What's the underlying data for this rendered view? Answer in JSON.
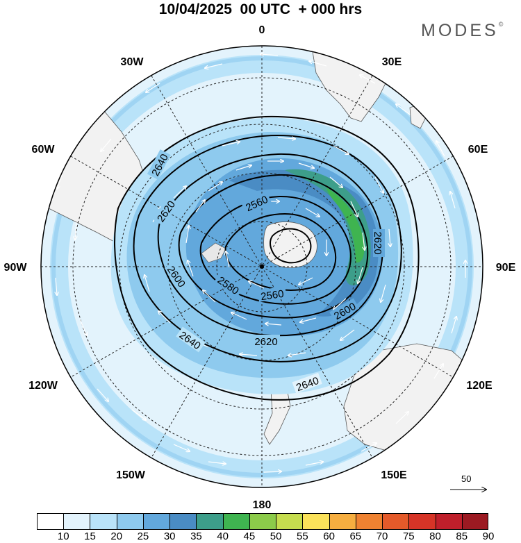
{
  "header": {
    "title": "10/04/2025  00 UTC  + 000 hrs",
    "brand": "MODES"
  },
  "map": {
    "projection": "polar-stereographic-south",
    "longitude_labels": [
      "0",
      "30E",
      "60E",
      "90E",
      "120E",
      "150E",
      "180",
      "150W",
      "120W",
      "90W",
      "60W",
      "30W"
    ],
    "contour_labels": [
      "2560",
      "2560",
      "2580",
      "2600",
      "2600",
      "2620",
      "2620",
      "2620",
      "2640",
      "2640",
      "2640"
    ],
    "contour_color": "#000000",
    "land_color": "#f2f2f2"
  },
  "colorbar": {
    "tick_labels": [
      "10",
      "15",
      "20",
      "25",
      "30",
      "35",
      "40",
      "45",
      "50",
      "55",
      "60",
      "65",
      "70",
      "75",
      "80",
      "85",
      "90"
    ],
    "colors": [
      "#ffffff",
      "#e3f3fc",
      "#b9e3f9",
      "#8ecaee",
      "#62a8dc",
      "#4a8cc4",
      "#3d9e8a",
      "#3fb450",
      "#8ccb4a",
      "#c6dd4f",
      "#fbe25a",
      "#f6ae40",
      "#ef8231",
      "#e45a2a",
      "#d63427",
      "#bf1f2b",
      "#9c1a22"
    ]
  },
  "reference_vector": {
    "label": "50"
  }
}
